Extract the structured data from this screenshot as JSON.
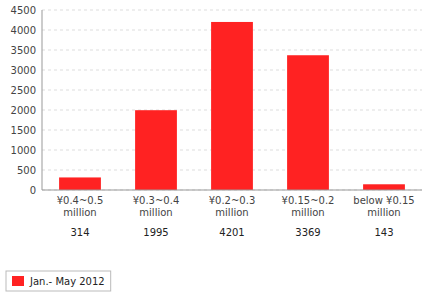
{
  "chart_data": {
    "type": "bar",
    "categories": [
      "¥0.4~0.5\nmillion",
      "¥0.3~0.4\nmillion",
      "¥0.2~0.3\nmillion",
      "¥0.15~0.2\nmillion",
      "below ¥0.15\nmillion"
    ],
    "series": [
      {
        "name": "Jan.- May 2012",
        "color": "#ff2222",
        "values": [
          314,
          1995,
          4201,
          3369,
          143
        ]
      }
    ],
    "ylim": [
      0,
      4500
    ],
    "yticks": [
      0,
      500,
      1000,
      1500,
      2000,
      2500,
      3000,
      3500,
      4000,
      4500
    ],
    "grid": true,
    "legend": "lower left",
    "data_labels": true
  }
}
